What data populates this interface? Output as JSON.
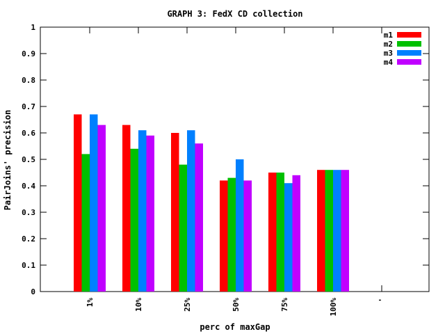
{
  "chart_data": {
    "type": "bar",
    "title": "GRAPH 3: FedX CD collection",
    "xlabel": "perc of maxGap",
    "ylabel": "PairJoins' precision",
    "categories": [
      "1%",
      "10%",
      "25%",
      "50%",
      "75%",
      "100%",
      "'"
    ],
    "ylim": [
      0,
      1
    ],
    "yticks": [
      "0",
      "0.1",
      "0.2",
      "0.3",
      "0.4",
      "0.5",
      "0.6",
      "0.7",
      "0.8",
      "0.9",
      "1"
    ],
    "series": [
      {
        "name": "m1",
        "color": "#ff0000",
        "values": [
          0.67,
          0.63,
          0.6,
          0.42,
          0.45,
          0.46,
          null
        ]
      },
      {
        "name": "m2",
        "color": "#00c000",
        "values": [
          0.52,
          0.54,
          0.48,
          0.43,
          0.45,
          0.46,
          null
        ]
      },
      {
        "name": "m3",
        "color": "#0080ff",
        "values": [
          0.67,
          0.61,
          0.61,
          0.5,
          0.41,
          0.46,
          null
        ]
      },
      {
        "name": "m4",
        "color": "#c000ff",
        "values": [
          0.63,
          0.59,
          0.56,
          0.42,
          0.44,
          0.46,
          null
        ]
      }
    ],
    "legend_position": "top-right",
    "grid": false
  }
}
